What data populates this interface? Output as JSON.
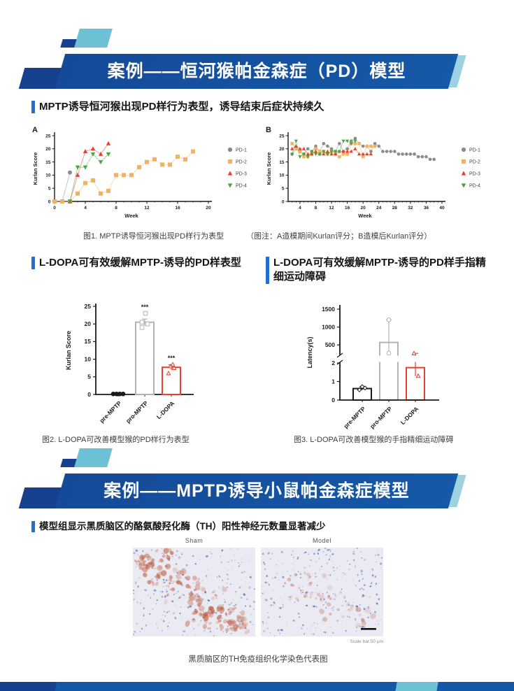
{
  "banners": {
    "first": "案例——恒河猴帕金森症（PD）模型",
    "second": "案例——MPTP诱导小鼠帕金森症模型"
  },
  "headings": {
    "s1": "MPTP诱导恒河猴出现PD样行为表型，诱导结束后症状持续久",
    "s2_left": "L-DOPA可有效缓解MPTP-诱导的PD样表型",
    "s2_right": "L-DOPA可有效缓解MPTP-诱导的PD样手指精细运动障碍",
    "s3": "模型组显示黑质脑区的酪氨酸羟化酶（TH）阳性神经元数量显著减少"
  },
  "captions": {
    "fig1": "图1. MPTP诱导恒河猴出现PD样行为表型",
    "fig1_note": "（图注：A造模期间Kurlan评分；B造模后Kurlan评分）",
    "fig2": "图2. L-DOPA可改善模型猴的PD样行为表型",
    "fig3": "图3. L-DOPA可改善模型猴的手指精细运动障碍",
    "histology": "黑质脑区的TH免疫组织化学染色代表图"
  },
  "histology": {
    "left_label": "Sham",
    "right_label": "Model",
    "scale_bar_label": "Scale bar:50 μm"
  },
  "colors": {
    "banner_blue": "#1559a8",
    "banner_navy": "#17418e",
    "accent_teal": "#6cc1d5",
    "heading_bar": "#1e6fd6",
    "pd1_gray": "#8b8b8b",
    "pd2_orange": "#f2b266",
    "pd3_red": "#e8402f",
    "pd4_green": "#46a93c",
    "bar_gray": "#b3b3b3",
    "bar_black": "#1a1a1a"
  },
  "chart_data": [
    {
      "id": "chartA",
      "type": "line",
      "panel_label": "A",
      "xlabel": "Week",
      "ylabel": "Kurlan Score",
      "xlim": [
        0,
        20
      ],
      "ylim": [
        0,
        25
      ],
      "xticks": [
        0,
        4,
        8,
        12,
        16,
        20
      ],
      "yticks": [
        0,
        5,
        10,
        15,
        20,
        25
      ],
      "legend_position": "right",
      "marker_size": 2.5,
      "series": [
        {
          "name": "PD-1",
          "marker": "circle",
          "color": "#8b8b8b",
          "points": [
            [
              0,
              0
            ],
            [
              1,
              0
            ],
            [
              2,
              11
            ]
          ]
        },
        {
          "name": "PD-2",
          "marker": "square",
          "color": "#f2b266",
          "points": [
            [
              0,
              0
            ],
            [
              1,
              0
            ],
            [
              2,
              0
            ],
            [
              3,
              3
            ],
            [
              4,
              7
            ],
            [
              5,
              8
            ],
            [
              6,
              3
            ],
            [
              7,
              4
            ],
            [
              8,
              10
            ],
            [
              9,
              10
            ],
            [
              10,
              10
            ],
            [
              11,
              13
            ],
            [
              12,
              15
            ],
            [
              13,
              16
            ],
            [
              14,
              14
            ],
            [
              15,
              14
            ],
            [
              16,
              17
            ],
            [
              17,
              16
            ],
            [
              18,
              19
            ]
          ]
        },
        {
          "name": "PD-3",
          "marker": "triangle-up",
          "color": "#e8402f",
          "points": [
            [
              2,
              0
            ],
            [
              3,
              10
            ],
            [
              4,
              19
            ],
            [
              5,
              20
            ],
            [
              6,
              18
            ],
            [
              7,
              22
            ]
          ]
        },
        {
          "name": "PD-4",
          "marker": "triangle-down",
          "color": "#46a93c",
          "points": [
            [
              2,
              0
            ],
            [
              3,
              13
            ],
            [
              4,
              13
            ],
            [
              5,
              18
            ],
            [
              6,
              15
            ],
            [
              7,
              18
            ]
          ]
        }
      ]
    },
    {
      "id": "chartB",
      "type": "line",
      "panel_label": "B",
      "xlabel": "Week",
      "ylabel": "Kurlan Score",
      "xlim": [
        1,
        40
      ],
      "ylim": [
        0,
        25
      ],
      "xticks": [
        4,
        8,
        12,
        16,
        20,
        24,
        28,
        32,
        36,
        40
      ],
      "yticks": [
        0,
        5,
        10,
        15,
        20,
        25
      ],
      "legend_position": "right",
      "marker_size": 1.8,
      "series": [
        {
          "name": "PD-1",
          "marker": "circle",
          "color": "#8b8b8b",
          "points": [
            [
              2,
              18
            ],
            [
              3,
              20
            ],
            [
              4,
              19
            ],
            [
              5,
              18
            ],
            [
              6,
              20
            ],
            [
              7,
              19
            ],
            [
              8,
              21
            ],
            [
              9,
              19
            ],
            [
              10,
              22
            ],
            [
              11,
              21
            ],
            [
              12,
              20
            ],
            [
              13,
              19
            ],
            [
              14,
              22
            ],
            [
              15,
              19
            ],
            [
              16,
              20
            ],
            [
              17,
              23
            ],
            [
              18,
              24
            ],
            [
              19,
              22
            ],
            [
              20,
              21
            ],
            [
              21,
              21
            ],
            [
              22,
              19
            ],
            [
              23,
              22
            ],
            [
              24,
              21
            ],
            [
              25,
              19
            ],
            [
              26,
              19
            ],
            [
              27,
              19
            ],
            [
              28,
              19
            ],
            [
              29,
              18
            ],
            [
              30,
              18
            ],
            [
              31,
              18
            ],
            [
              32,
              18
            ],
            [
              33,
              18
            ],
            [
              34,
              17
            ],
            [
              35,
              17
            ],
            [
              36,
              17
            ],
            [
              37,
              16
            ],
            [
              38,
              16
            ]
          ]
        },
        {
          "name": "PD-2",
          "marker": "square",
          "color": "#f2b266",
          "points": [
            [
              2,
              22
            ],
            [
              3,
              20
            ],
            [
              4,
              19
            ],
            [
              5,
              17
            ],
            [
              6,
              17
            ],
            [
              7,
              18
            ],
            [
              8,
              20
            ],
            [
              9,
              19
            ],
            [
              10,
              19
            ],
            [
              11,
              18
            ],
            [
              12,
              19
            ],
            [
              13,
              18
            ],
            [
              14,
              17
            ],
            [
              15,
              18
            ],
            [
              16,
              18
            ],
            [
              17,
              22
            ],
            [
              18,
              22
            ],
            [
              19,
              22
            ],
            [
              20,
              17
            ],
            [
              21,
              21
            ],
            [
              22,
              21
            ],
            [
              23,
              21
            ]
          ]
        },
        {
          "name": "PD-3",
          "marker": "triangle-up",
          "color": "#e8402f",
          "points": [
            [
              2,
              20
            ],
            [
              3,
              21
            ],
            [
              4,
              20
            ],
            [
              5,
              20
            ],
            [
              6,
              18
            ],
            [
              7,
              18
            ],
            [
              8,
              19
            ],
            [
              9,
              18
            ],
            [
              10,
              18
            ],
            [
              11,
              19
            ],
            [
              12,
              18
            ],
            [
              13,
              18
            ],
            [
              14,
              19
            ],
            [
              15,
              19
            ],
            [
              16,
              19
            ],
            [
              17,
              19
            ],
            [
              18,
              20
            ],
            [
              19,
              18
            ],
            [
              20,
              18
            ],
            [
              21,
              18
            ],
            [
              22,
              18
            ]
          ]
        },
        {
          "name": "PD-4",
          "marker": "triangle-down",
          "color": "#46a93c",
          "points": [
            [
              2,
              18
            ],
            [
              3,
              23
            ],
            [
              4,
              17
            ],
            [
              5,
              18
            ],
            [
              6,
              17
            ],
            [
              7,
              19
            ],
            [
              8,
              18
            ],
            [
              9,
              18
            ],
            [
              10,
              19
            ],
            [
              11,
              18
            ],
            [
              12,
              19
            ],
            [
              13,
              19
            ],
            [
              14,
              19
            ],
            [
              15,
              23
            ],
            [
              16,
              23
            ],
            [
              17,
              22
            ],
            [
              18,
              23
            ]
          ]
        }
      ]
    },
    {
      "id": "fig2",
      "type": "bar",
      "ylabel": "Kurlan Score",
      "ylim": [
        0,
        25
      ],
      "yticks": [
        0,
        5,
        10,
        15,
        20,
        25
      ],
      "categories": [
        "pre-MPTP",
        "pro-MPTP",
        "L-DOPA"
      ],
      "bars": [
        {
          "label": "pre-MPTP",
          "value": 0,
          "color": "#1a1a1a",
          "marker": "circle",
          "open": false,
          "points": [
            0.15,
            0.15,
            0.15,
            0.15
          ]
        },
        {
          "label": "pro-MPTP",
          "value": 20.5,
          "color": "#b3b3b3",
          "marker": "square",
          "open": true,
          "points": [
            19,
            20,
            20.5,
            23
          ],
          "error": 0.9,
          "sig": "***"
        },
        {
          "label": "L-DOPA",
          "value": 7.7,
          "color": "#e8402f",
          "marker": "triangle-up",
          "open": true,
          "points": [
            6,
            7.5,
            8,
            8.5
          ],
          "error": 0.7,
          "sig": "***"
        }
      ]
    },
    {
      "id": "fig3",
      "type": "bar",
      "ylabel": "Latency(s)",
      "axis_break": {
        "lower_range": [
          0,
          2
        ],
        "lower_ticks": [
          0,
          1,
          2
        ],
        "upper_range": [
          250,
          1500
        ],
        "upper_ticks": [
          500,
          1000,
          1500
        ]
      },
      "categories": [
        "pre-MPTP",
        "pro-MPTP",
        "L-DOPA"
      ],
      "bars": [
        {
          "label": "pre-MPTP",
          "value": 0.62,
          "color": "#1a1a1a",
          "marker": "diamond",
          "open": true,
          "points": [
            0.55,
            0.65,
            0.72
          ]
        },
        {
          "label": "pro-MPTP",
          "value": 570,
          "color": "#b3b3b3",
          "marker": "circle",
          "open": true,
          "points": [
            270,
            1200
          ]
        },
        {
          "label": "L-DOPA",
          "value": 1.75,
          "color": "#e8402f",
          "marker": "triangle-up",
          "open": true,
          "points": [
            1.3,
            2.4
          ]
        }
      ]
    }
  ]
}
